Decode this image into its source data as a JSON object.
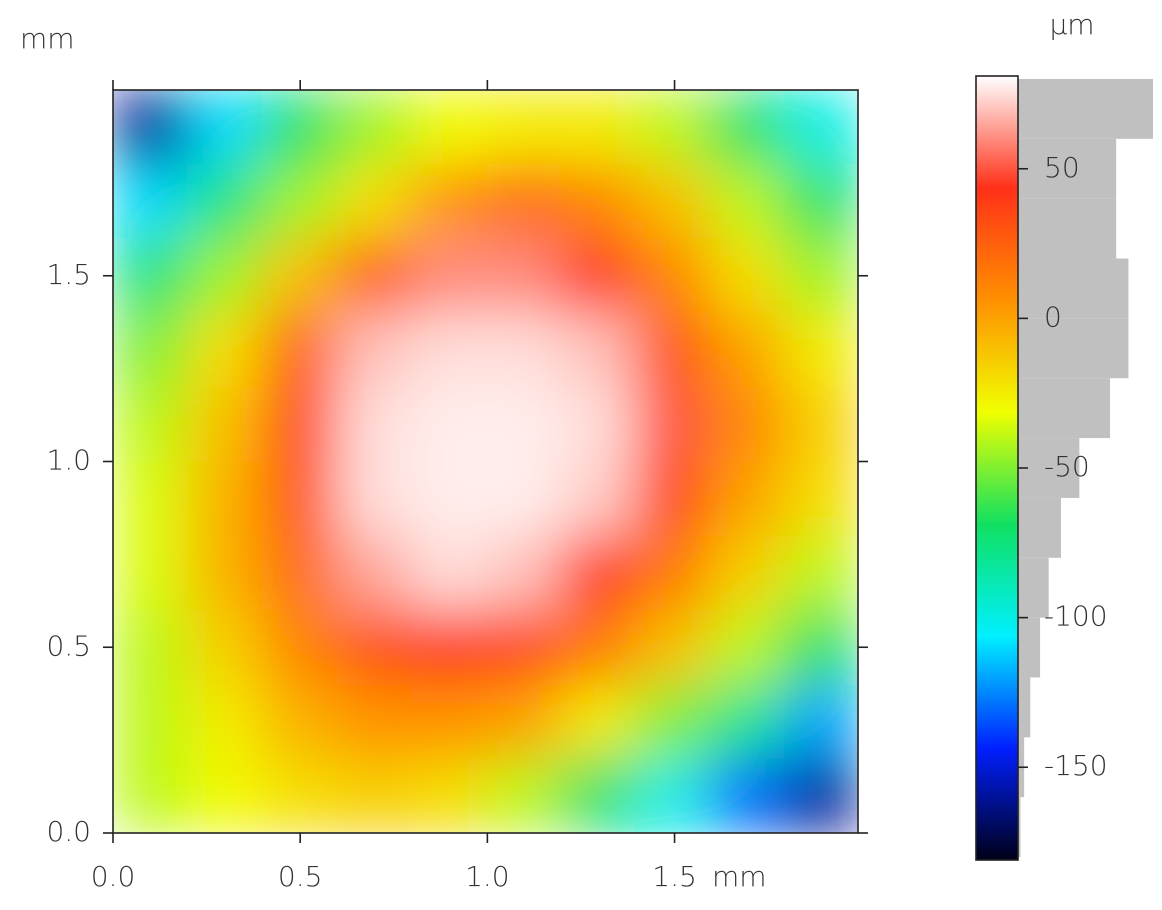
{
  "chart_data": {
    "type": "heatmap",
    "x_unit": "mm",
    "y_unit": "mm",
    "z_unit": "µm",
    "xlim": [
      0,
      1.99
    ],
    "ylim": [
      0,
      2.0
    ],
    "xticks": [
      {
        "value": 0,
        "label": "0.0"
      },
      {
        "value": 0.5,
        "label": "0.5"
      },
      {
        "value": 1,
        "label": "1.0"
      },
      {
        "value": 1.5,
        "label": "1.5"
      }
    ],
    "yticks": [
      {
        "value": 0,
        "label": "0.0"
      },
      {
        "value": 0.5,
        "label": "0.5"
      },
      {
        "value": 1,
        "label": "1.0"
      },
      {
        "value": 1.5,
        "label": "1.5"
      }
    ],
    "zlim": [
      -181,
      81
    ],
    "zticks": [
      50,
      0,
      -50,
      -100,
      -150
    ],
    "colors": [
      "#000018",
      "#0020ff",
      "#00f0ff",
      "#10e060",
      "#f0ff00",
      "#ff9000",
      "#ff3018",
      "#ffffff"
    ],
    "z": [
      [
        -160,
        -110,
        -70,
        -45,
        -30,
        -25,
        -25,
        -40,
        -70,
        -100
      ],
      [
        -110,
        -75,
        -45,
        -20,
        5,
        20,
        10,
        -10,
        -40,
        -70
      ],
      [
        -75,
        -45,
        -10,
        25,
        60,
        60,
        45,
        10,
        -20,
        -45
      ],
      [
        -50,
        -20,
        25,
        70,
        75,
        75,
        70,
        30,
        0,
        -25
      ],
      [
        -40,
        -10,
        35,
        75,
        78,
        78,
        75,
        50,
        10,
        -15
      ],
      [
        -35,
        -5,
        30,
        75,
        78,
        78,
        72,
        35,
        0,
        -20
      ],
      [
        -35,
        -5,
        20,
        65,
        75,
        70,
        45,
        15,
        -15,
        -40
      ],
      [
        -40,
        -15,
        10,
        30,
        40,
        35,
        15,
        -10,
        -40,
        -70
      ],
      [
        -40,
        -25,
        -5,
        5,
        5,
        0,
        -25,
        -50,
        -80,
        -120
      ],
      [
        -40,
        -30,
        -20,
        -15,
        -20,
        -40,
        -70,
        -100,
        -130,
        -160
      ]
    ],
    "histogram": {
      "color": "#c0c0c0",
      "bins": [
        -180,
        -160,
        -140,
        -120,
        -100,
        -80,
        -60,
        -40,
        -20,
        0,
        20,
        40,
        60,
        80
      ],
      "counts": [
        2,
        5,
        10,
        18,
        25,
        35,
        50,
        75,
        90,
        90,
        80,
        80,
        110
      ]
    }
  }
}
